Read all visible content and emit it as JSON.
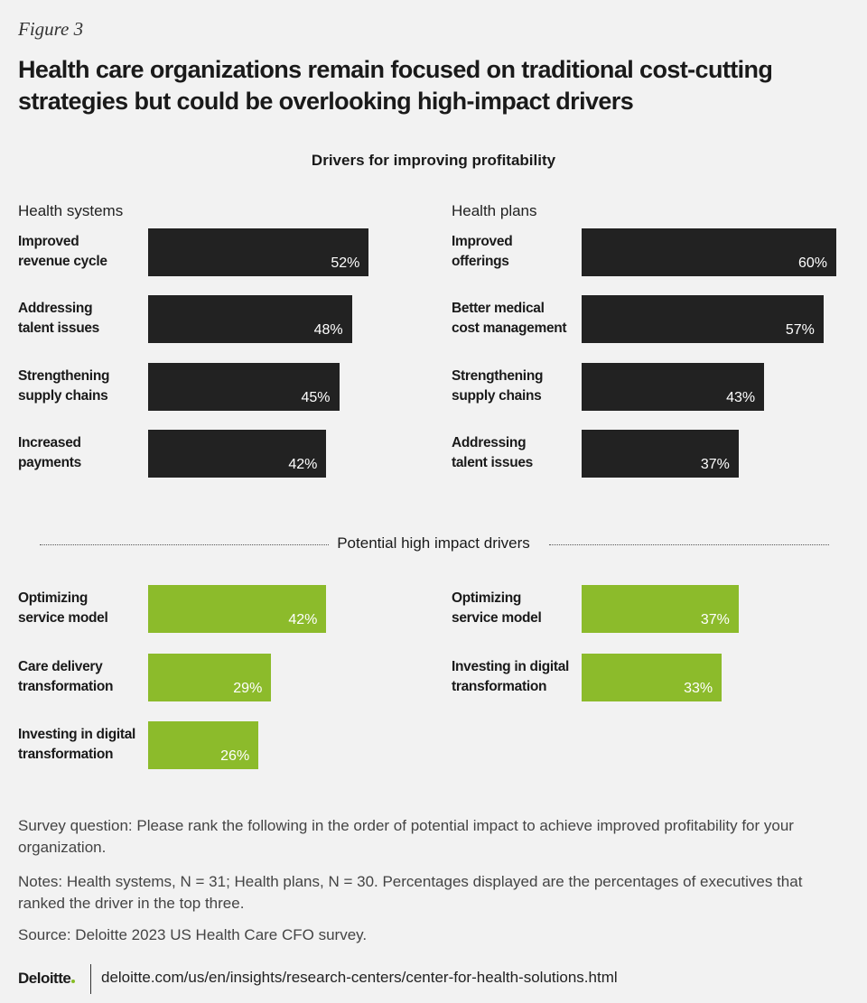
{
  "figure_label": "Figure 3",
  "title": "Health care organizations remain focused on traditional cost-cutting strategies but could be overlooking high-impact drivers",
  "subtitle": "Drivers for improving profitability",
  "section_label": "Potential high impact drivers",
  "chart_data": [
    {
      "type": "bar",
      "title": "Health systems",
      "color": "#222222",
      "categories": [
        "Improved\nrevenue cycle",
        "Addressing\ntalent issues",
        "Strengthening\nsupply chains",
        "Increased\npayments"
      ],
      "values": [
        52,
        48,
        45,
        42
      ],
      "value_labels": [
        "52%",
        "48%",
        "45%",
        "42%"
      ]
    },
    {
      "type": "bar",
      "title": "Health plans",
      "color": "#222222",
      "categories": [
        "Improved\nofferings",
        "Better medical\ncost management",
        "Strengthening\nsupply chains",
        "Addressing\ntalent issues"
      ],
      "values": [
        60,
        57,
        43,
        37
      ],
      "value_labels": [
        "60%",
        "57%",
        "43%",
        "37%"
      ]
    },
    {
      "type": "bar",
      "color": "#8cbb2b",
      "categories": [
        "Optimizing\nservice model",
        "Care delivery\ntransformation",
        "Investing in digital\ntransformation"
      ],
      "values": [
        42,
        29,
        26
      ],
      "value_labels": [
        "42%",
        "29%",
        "26%"
      ]
    },
    {
      "type": "bar",
      "color": "#8cbb2b",
      "categories": [
        "Optimizing\nservice model",
        "Investing in digital\ntransformation"
      ],
      "values": [
        37,
        33
      ],
      "value_labels": [
        "37%",
        "33%"
      ]
    }
  ],
  "notes": {
    "survey_question": "Survey question: Please rank the following in the order of potential impact to achieve improved profitability for your organization.",
    "notes": "Notes:  Health systems, N = 31; Health plans, N = 30. Percentages displayed are the percentages of executives that ranked the driver in the top three.",
    "source": "Source: Deloitte 2023 US Health Care CFO survey."
  },
  "footer": {
    "brand": "Deloitte",
    "url": "deloitte.com/us/en/insights/research-centers/center-for-health-solutions.html"
  }
}
